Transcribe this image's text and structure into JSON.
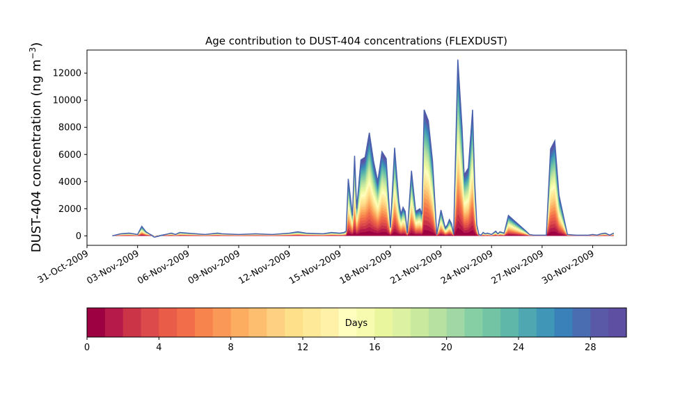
{
  "chart_data": [
    {
      "type": "area",
      "stacked": true,
      "title": "Age contribution to DUST-404 concentrations (FLEXDUST)",
      "ylabel": "DUST-404 concentration (ng m⁻³)",
      "ylabel_main": "DUST-404 concentration (ng m",
      "ylabel_sup": "−3",
      "ylabel_tail": ")",
      "xlim": [
        "2009-10-31",
        "2009-12-02"
      ],
      "ylim": [
        -700,
        13700
      ],
      "yticks": [
        0,
        2000,
        4000,
        6000,
        8000,
        10000,
        12000
      ],
      "xtick_labels": [
        "31-Oct-2009",
        "03-Nov-2009",
        "06-Nov-2009",
        "09-Nov-2009",
        "12-Nov-2009",
        "15-Nov-2009",
        "18-Nov-2009",
        "21-Nov-2009",
        "24-Nov-2009",
        "27-Nov-2009",
        "30-Nov-2009"
      ],
      "grid": false,
      "series_count": 30,
      "colormap": "Spectral",
      "total_outline_color": "#4a62ad",
      "total": {
        "x": [
          "2009-11-01T12:00",
          "2009-11-02",
          "2009-11-02T12:00",
          "2009-11-03",
          "2009-11-03T06:00",
          "2009-11-03T12:00",
          "2009-11-04",
          "2009-11-05",
          "2009-11-05T06:00",
          "2009-11-05T12:00",
          "2009-11-06",
          "2009-11-07",
          "2009-11-07T18:00",
          "2009-11-08",
          "2009-11-09",
          "2009-11-10",
          "2009-11-11",
          "2009-11-12",
          "2009-11-12T12:00",
          "2009-11-13",
          "2009-11-14",
          "2009-11-14T12:00",
          "2009-11-15",
          "2009-11-15T06:00",
          "2009-11-15T09:00",
          "2009-11-15T12:00",
          "2009-11-15T18:00",
          "2009-11-15T21:00",
          "2009-11-16",
          "2009-11-16T06:00",
          "2009-11-16T12:00",
          "2009-11-16T18:00",
          "2009-11-17",
          "2009-11-17T06:00",
          "2009-11-17T12:00",
          "2009-11-17T18:00",
          "2009-11-18",
          "2009-11-18T06:00",
          "2009-11-18T12:00",
          "2009-11-18T15:00",
          "2009-11-18T18:00",
          "2009-11-18T21:00",
          "2009-11-19",
          "2009-11-19T06:00",
          "2009-11-19T12:00",
          "2009-11-19T18:00",
          "2009-11-19T21:00",
          "2009-11-20",
          "2009-11-20T06:00",
          "2009-11-20T12:00",
          "2009-11-20T18:00",
          "2009-11-21",
          "2009-11-21T06:00",
          "2009-11-21T09:00",
          "2009-11-21T12:00",
          "2009-11-21T15:00",
          "2009-11-21T18:00",
          "2009-11-22",
          "2009-11-22T06:00",
          "2009-11-22T09:00",
          "2009-11-22T15:00",
          "2009-11-22T21:00",
          "2009-11-23",
          "2009-11-23T03:00",
          "2009-11-23T06:00",
          "2009-11-23T09:00",
          "2009-11-23T12:00",
          "2009-11-23T15:00",
          "2009-11-23T18:00",
          "2009-11-24",
          "2009-11-24T06:00",
          "2009-11-24T09:00",
          "2009-11-24T12:00",
          "2009-11-24T18:00",
          "2009-11-25",
          "2009-11-26",
          "2009-11-26T06:00",
          "2009-11-26T12:00",
          "2009-11-26T18:00",
          "2009-11-27",
          "2009-11-27T06:00",
          "2009-11-27T12:00",
          "2009-11-27T18:00",
          "2009-11-28",
          "2009-11-28T12:00",
          "2009-11-29",
          "2009-11-29T12:00",
          "2009-11-29T18:00",
          "2009-11-30",
          "2009-11-30T06:00",
          "2009-11-30T09:00",
          "2009-11-30T12:00",
          "2009-11-30T18:00",
          "2009-12-01",
          "2009-12-01T06:00"
        ],
        "y": [
          0,
          150,
          200,
          100,
          700,
          300,
          -100,
          200,
          100,
          250,
          200,
          100,
          200,
          150,
          100,
          150,
          100,
          200,
          300,
          200,
          150,
          250,
          200,
          250,
          350,
          4200,
          1500,
          5900,
          2000,
          5600,
          5800,
          7600,
          5500,
          4000,
          6200,
          5700,
          600,
          6500,
          2500,
          1600,
          2100,
          1800,
          200,
          4800,
          1800,
          2000,
          1600,
          9300,
          8500,
          5500,
          100,
          1900,
          600,
          800,
          1200,
          900,
          100,
          13000,
          8000,
          4500,
          5000,
          9300,
          4000,
          800,
          100,
          50,
          250,
          150,
          200,
          100,
          350,
          150,
          300,
          200,
          1500,
          400,
          100,
          50,
          50,
          50,
          50,
          6400,
          7000,
          3000,
          100,
          50,
          50,
          50,
          100,
          50,
          100,
          150,
          200,
          50,
          200
        ]
      },
      "colorbar": {
        "label": "Days",
        "ticks": [
          0,
          4,
          8,
          12,
          16,
          20,
          24,
          28
        ],
        "range": [
          0,
          30
        ],
        "colors": [
          "#9e0142",
          "#b51a4a",
          "#cb3347",
          "#dd4a4c",
          "#e95c47",
          "#f26d4a",
          "#f7834d",
          "#fa9857",
          "#fdad60",
          "#fdbf6f",
          "#fed081",
          "#fee08b",
          "#fee999",
          "#fff1a8",
          "#fffebe",
          "#f6fbaf",
          "#eaf69e",
          "#dcf1a1",
          "#c9e99e",
          "#b6e1a0",
          "#a0d7a4",
          "#86cfa5",
          "#72c4a5",
          "#5eb7a8",
          "#4ea7b1",
          "#3f96b7",
          "#3a81b9",
          "#4a6db2",
          "#5959a8",
          "#5e4fa2"
        ]
      }
    }
  ]
}
